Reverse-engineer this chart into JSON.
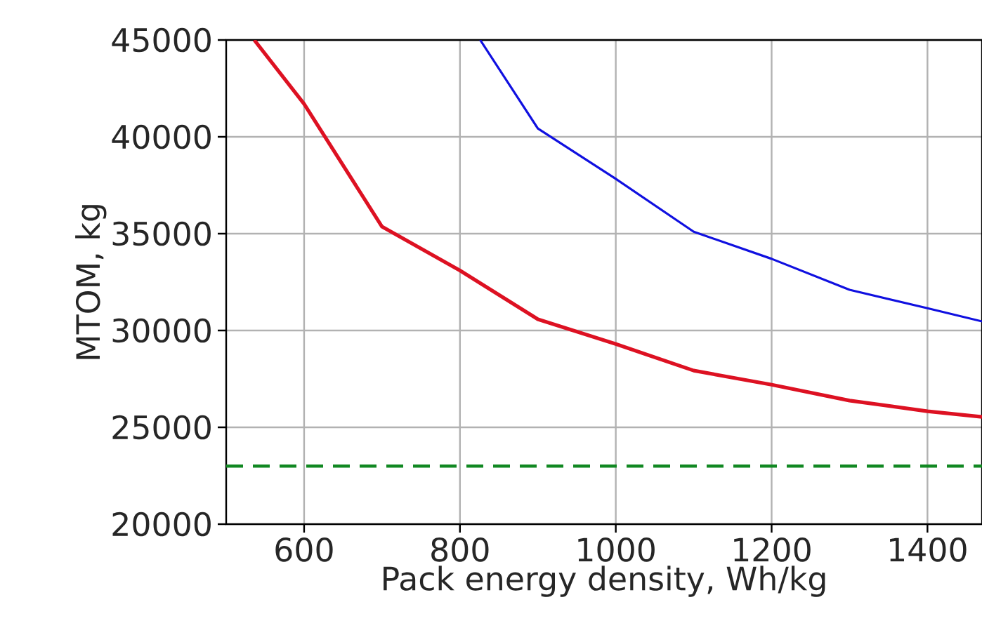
{
  "chart_data": {
    "type": "line",
    "xlabel": "Pack energy density, Wh/kg",
    "ylabel": "MTOM, kg",
    "xlim": [
      500,
      1470
    ],
    "ylim": [
      20000,
      45000
    ],
    "xticks": [
      600,
      800,
      1000,
      1200,
      1400
    ],
    "yticks": [
      20000,
      25000,
      30000,
      35000,
      40000,
      45000
    ],
    "grid": true,
    "marker": "none",
    "line_style": "solid",
    "series": [
      {
        "color": "#dd1122",
        "x": [
          536,
          600,
          700,
          800,
          900,
          1000,
          1100,
          1200,
          1300,
          1400,
          1470
        ],
        "values": [
          45000,
          41700,
          35360,
          33100,
          30580,
          29300,
          27930,
          27200,
          26380,
          25830,
          25540
        ]
      },
      {
        "color": "#1010e0",
        "x": [
          826,
          900,
          1000,
          1100,
          1200,
          1300,
          1400,
          1470
        ],
        "values": [
          45000,
          40430,
          37830,
          35100,
          33700,
          32100,
          31150,
          30470
        ]
      }
    ],
    "ref_lines": [
      {
        "axis": "y",
        "value": 23000,
        "color": "#118822",
        "line_style": "dashed"
      }
    ]
  }
}
